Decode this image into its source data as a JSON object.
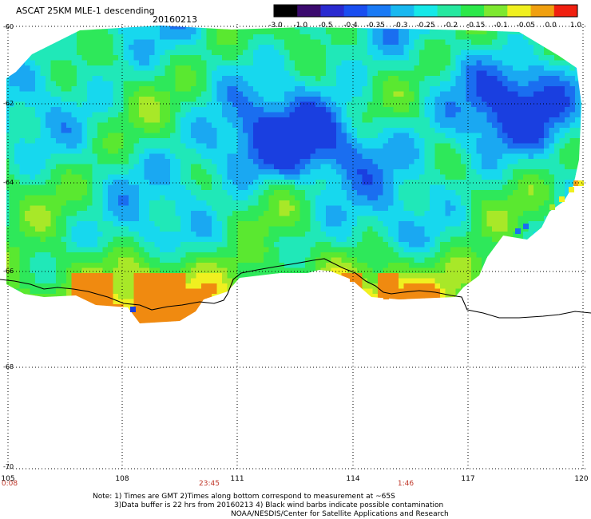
{
  "title": "ASCAT 25KM MLE-1 descending",
  "date": "20160213",
  "colorbar": {
    "labels": [
      "-3.0",
      "-1.0",
      "-0.5",
      "-0.4",
      "-0.35",
      "-0.3",
      "-0.25",
      "-0.2",
      "-0.15",
      "-0.1",
      "-0.05",
      "0.0",
      "1.0"
    ],
    "colors": [
      "#000000",
      "#3b0a6e",
      "#2a2ad0",
      "#1a4ef0",
      "#1a7af5",
      "#18b8f0",
      "#16e8e8",
      "#26e8a0",
      "#2ce84a",
      "#7ee830",
      "#f0f020",
      "#f0a010",
      "#f02010"
    ]
  },
  "map": {
    "lon_range": [
      105,
      120
    ],
    "lat_range": [
      -70,
      -60
    ],
    "lon_ticks": [
      "105",
      "108",
      "111",
      "114",
      "117",
      "120"
    ],
    "lat_ticks": [
      "-60",
      "-62",
      "-64",
      "-66",
      "-68",
      "-70"
    ],
    "grid": "dotted",
    "coastline_color": "#000000"
  },
  "times": [
    "0:08",
    "23:45",
    "1:46"
  ],
  "note": {
    "line1": "Note: 1) Times are GMT 2)Times along bottom correspond to measurement at ~65S",
    "line2": "3)Data buffer is 22 hrs from 20160213 4) Black wind barbs indicate possible contamination",
    "line3": "NOAA/NESDIS/Center for Satellite Applications and Research"
  }
}
